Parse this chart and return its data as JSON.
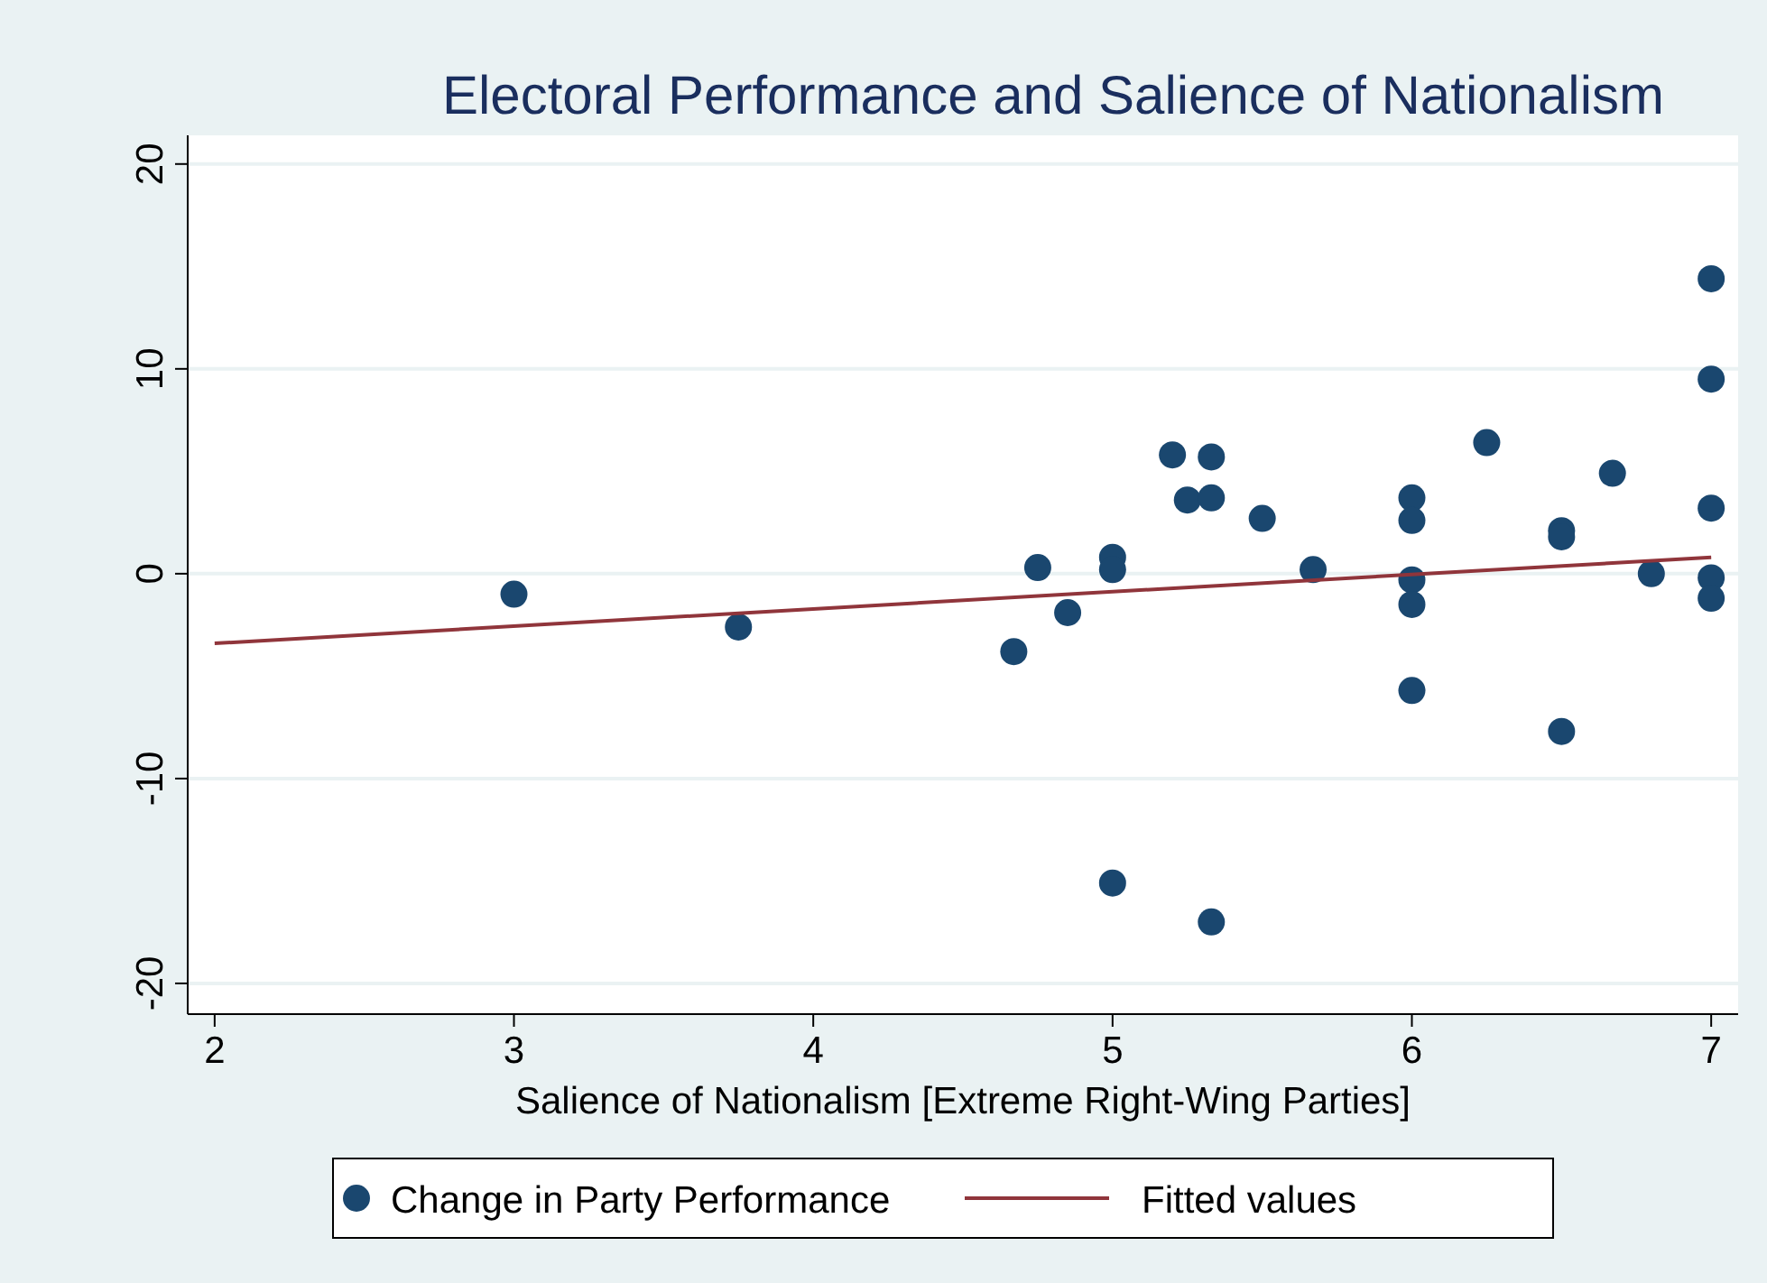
{
  "chart_data": {
    "type": "scatter",
    "title": "Electoral Performance and Salience of Nationalism",
    "xlabel": "Salience of Nationalism [Extreme Right-Wing Parties]",
    "xlim": [
      1.91,
      7.09
    ],
    "xticks": [
      2,
      3,
      4,
      5,
      6,
      7
    ],
    "ylim": [
      -21.5,
      21.4
    ],
    "yticks": [
      -20,
      -10,
      0,
      10,
      20
    ],
    "grid": "y",
    "legend": "bottom",
    "series": [
      {
        "name": "Change in Party Performance",
        "marker": "circle",
        "color": "#1a476f",
        "x": [
          3,
          3.75,
          4.67,
          4.75,
          4.85,
          5,
          5,
          5,
          5.2,
          5.25,
          5.33,
          5.33,
          5.33,
          5.5,
          5.67,
          6,
          6,
          6,
          6,
          6,
          6.25,
          6.5,
          6.5,
          6.5,
          6.67,
          6.8,
          7,
          7,
          7,
          7,
          7
        ],
        "values": [
          -1.0,
          -2.6,
          -3.8,
          0.3,
          -1.9,
          0.8,
          0.2,
          -15.1,
          5.8,
          3.6,
          5.7,
          3.7,
          -17.0,
          2.7,
          0.2,
          3.7,
          2.6,
          -0.3,
          -1.5,
          -5.7,
          6.4,
          2.1,
          1.8,
          -7.7,
          4.9,
          0.0,
          14.4,
          9.5,
          3.2,
          -0.2,
          -1.2
        ]
      },
      {
        "name": "Fitted values",
        "type": "line",
        "color": "#90353b",
        "x": [
          2,
          7
        ],
        "values": [
          -3.4,
          0.8
        ]
      }
    ]
  }
}
